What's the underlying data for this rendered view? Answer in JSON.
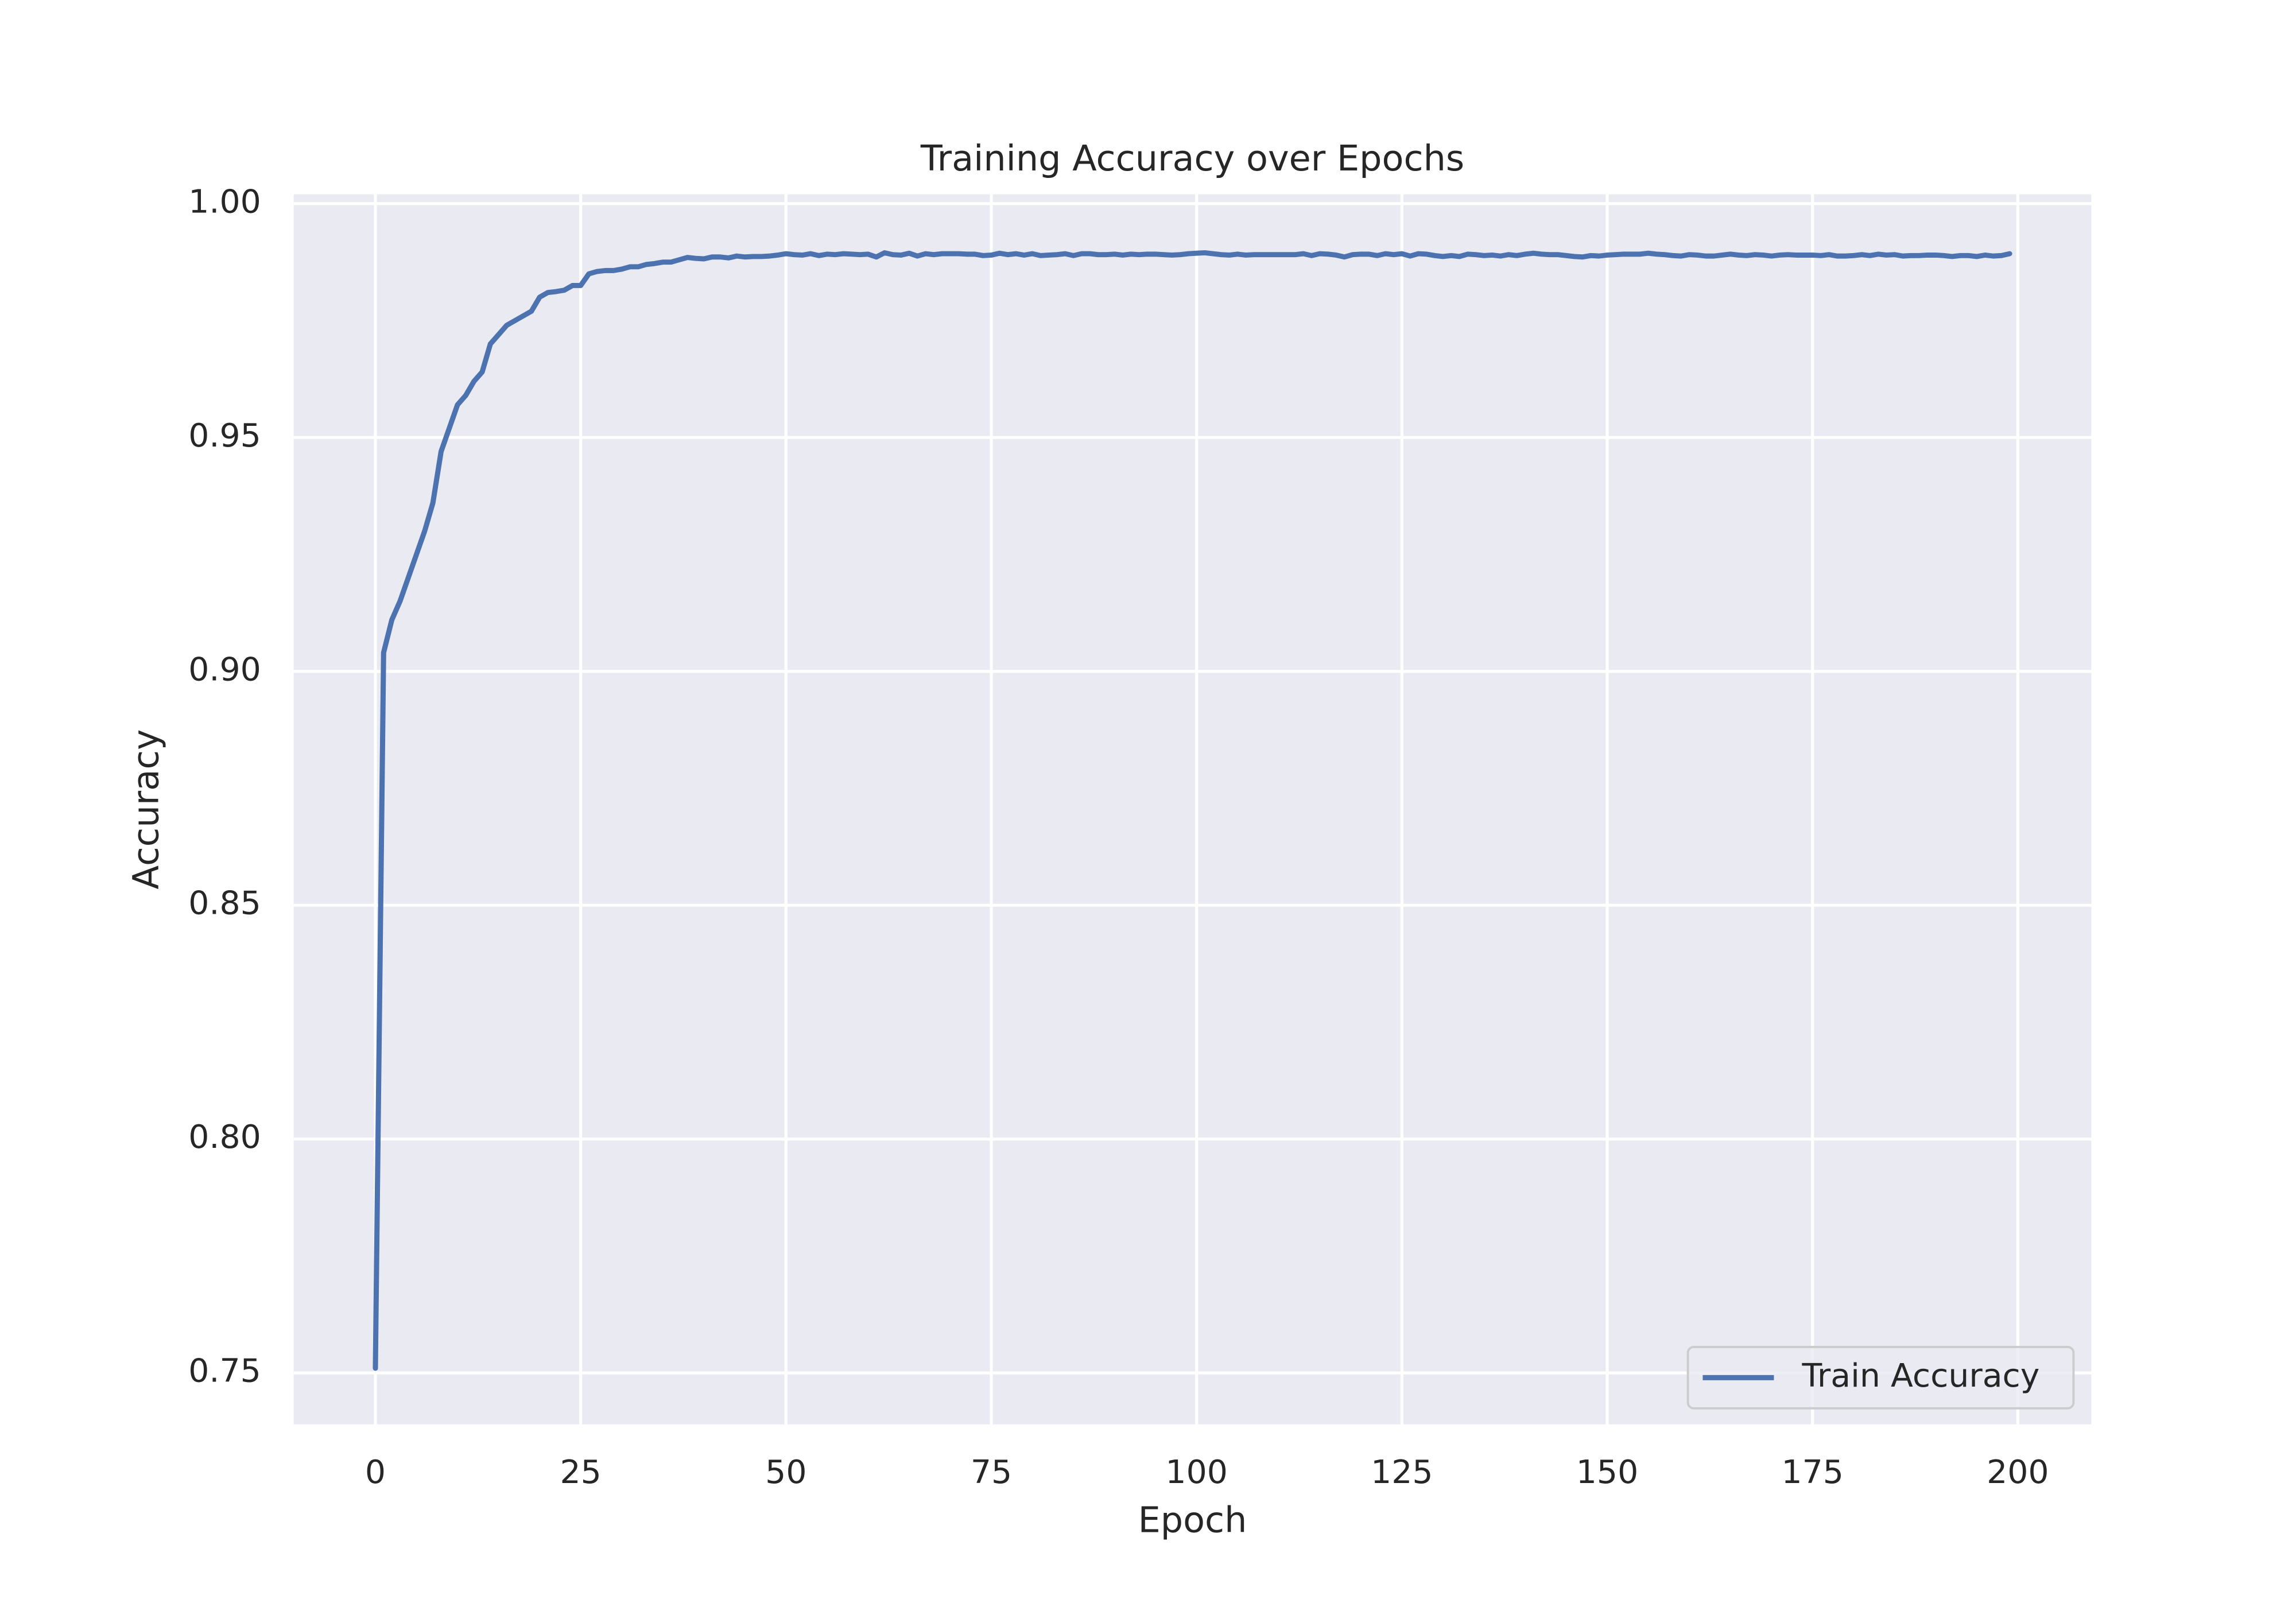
{
  "chart_data": {
    "type": "line",
    "title": "Training Accuracy over Epochs",
    "xlabel": "Epoch",
    "ylabel": "Accuracy",
    "x": [
      0,
      1,
      2,
      3,
      4,
      5,
      6,
      7,
      8,
      9,
      10,
      11,
      12,
      13,
      14,
      15,
      16,
      17,
      18,
      19,
      20,
      21,
      22,
      23,
      24,
      25,
      26,
      27,
      28,
      29,
      30,
      31,
      32,
      33,
      34,
      35,
      36,
      37,
      38,
      39,
      40,
      41,
      42,
      43,
      44,
      45,
      46,
      47,
      48,
      49,
      50,
      51,
      52,
      53,
      54,
      55,
      56,
      57,
      58,
      59,
      60,
      61,
      62,
      63,
      64,
      65,
      66,
      67,
      68,
      69,
      70,
      71,
      72,
      73,
      74,
      75,
      76,
      77,
      78,
      79,
      80,
      81,
      82,
      83,
      84,
      85,
      86,
      87,
      88,
      89,
      90,
      91,
      92,
      93,
      94,
      95,
      96,
      97,
      98,
      99,
      100,
      101,
      102,
      103,
      104,
      105,
      106,
      107,
      108,
      109,
      110,
      111,
      112,
      113,
      114,
      115,
      116,
      117,
      118,
      119,
      120,
      121,
      122,
      123,
      124,
      125,
      126,
      127,
      128,
      129,
      130,
      131,
      132,
      133,
      134,
      135,
      136,
      137,
      138,
      139,
      140,
      141,
      142,
      143,
      144,
      145,
      146,
      147,
      148,
      149,
      150,
      151,
      152,
      153,
      154,
      155,
      156,
      157,
      158,
      159,
      160,
      161,
      162,
      163,
      164,
      165,
      166,
      167,
      168,
      169,
      170,
      171,
      172,
      173,
      174,
      175,
      176,
      177,
      178,
      179,
      180,
      181,
      182,
      183,
      184,
      185,
      186,
      187,
      188,
      189,
      190,
      191,
      192,
      193,
      194,
      195,
      196,
      197,
      198,
      199
    ],
    "series": [
      {
        "name": "Train Accuracy",
        "color": "#4c72b0",
        "values": [
          0.751,
          0.904,
          0.911,
          0.915,
          0.92,
          0.925,
          0.93,
          0.936,
          0.947,
          0.952,
          0.957,
          0.959,
          0.962,
          0.964,
          0.97,
          0.972,
          0.974,
          0.975,
          0.976,
          0.977,
          0.98,
          0.981,
          0.9812,
          0.9815,
          0.9825,
          0.9825,
          0.985,
          0.9855,
          0.9857,
          0.9857,
          0.986,
          0.9865,
          0.9865,
          0.987,
          0.9872,
          0.9875,
          0.9875,
          0.988,
          0.9885,
          0.9883,
          0.9882,
          0.9886,
          0.9886,
          0.9884,
          0.9888,
          0.9886,
          0.9887,
          0.9887,
          0.9888,
          0.989,
          0.9893,
          0.9891,
          0.989,
          0.9893,
          0.9889,
          0.9892,
          0.9891,
          0.9893,
          0.9892,
          0.9891,
          0.9892,
          0.9886,
          0.9895,
          0.9891,
          0.989,
          0.9894,
          0.9888,
          0.9893,
          0.9891,
          0.9893,
          0.9893,
          0.9893,
          0.9892,
          0.9892,
          0.9889,
          0.989,
          0.9894,
          0.9891,
          0.9893,
          0.989,
          0.9893,
          0.9889,
          0.989,
          0.9891,
          0.9893,
          0.9889,
          0.9893,
          0.9893,
          0.9891,
          0.9891,
          0.9892,
          0.989,
          0.9892,
          0.9891,
          0.9892,
          0.9892,
          0.9891,
          0.989,
          0.9891,
          0.9893,
          0.9894,
          0.9895,
          0.9893,
          0.9891,
          0.989,
          0.9892,
          0.989,
          0.9891,
          0.9891,
          0.9891,
          0.9891,
          0.9891,
          0.9891,
          0.9893,
          0.9889,
          0.9893,
          0.9892,
          0.989,
          0.9886,
          0.9891,
          0.9892,
          0.9892,
          0.9889,
          0.9893,
          0.9891,
          0.9893,
          0.9888,
          0.9893,
          0.9892,
          0.9889,
          0.9887,
          0.9889,
          0.9887,
          0.9892,
          0.9891,
          0.9889,
          0.989,
          0.9888,
          0.9891,
          0.9889,
          0.9892,
          0.9894,
          0.9892,
          0.9891,
          0.9891,
          0.9889,
          0.9887,
          0.9886,
          0.9889,
          0.9888,
          0.989,
          0.9891,
          0.9892,
          0.9892,
          0.9892,
          0.9894,
          0.9892,
          0.9891,
          0.9889,
          0.9888,
          0.9891,
          0.989,
          0.9888,
          0.9888,
          0.989,
          0.9892,
          0.989,
          0.9889,
          0.9891,
          0.989,
          0.9888,
          0.989,
          0.9891,
          0.989,
          0.989,
          0.989,
          0.9889,
          0.9891,
          0.9888,
          0.9888,
          0.9889,
          0.9891,
          0.9889,
          0.9892,
          0.989,
          0.9891,
          0.9888,
          0.9889,
          0.9889,
          0.989,
          0.989,
          0.9889,
          0.9887,
          0.9889,
          0.9889,
          0.9887,
          0.989,
          0.9888,
          0.9889,
          0.9893
        ]
      }
    ],
    "xlim": [
      -9.95,
      208.95
    ],
    "xticks": [
      0,
      25,
      50,
      75,
      100,
      125,
      150,
      175,
      200
    ],
    "ylim": [
      0.739,
      1.002
    ],
    "yticks": [
      0.75,
      {
        "value": 0.8,
        "label": "0.80"
      },
      0.85,
      {
        "value": 0.9,
        "label": "0.90"
      },
      0.95,
      {
        "value": 1.0,
        "label": "1.00"
      }
    ],
    "grid": true,
    "legend": "lower right"
  }
}
